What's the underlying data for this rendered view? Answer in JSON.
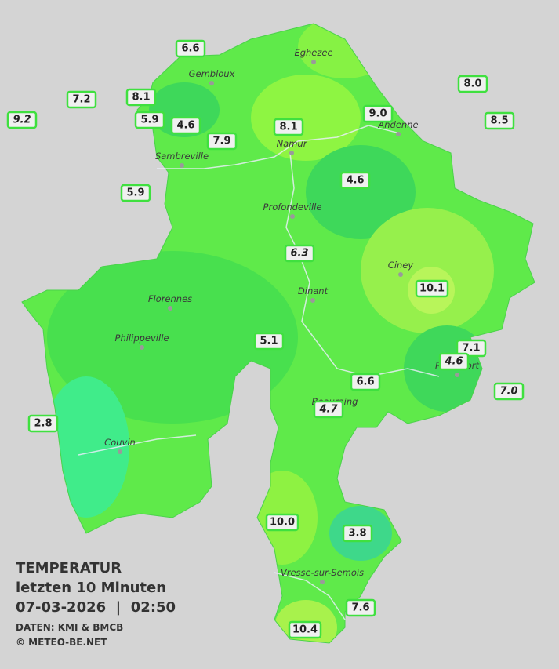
{
  "legend": {
    "title": "TEMPERATUR",
    "subtitle": "letzten 10 Minuten",
    "datetime": "07-03-2026  |  02:50",
    "source": "DATEN: KMI & BMCB",
    "copyright": "© METEO-BE.NET"
  },
  "cities": [
    "Eghezee",
    "Gembloux",
    "Andenne",
    "Namur",
    "Sambreville",
    "Profondeville",
    "Ciney",
    "Dinant",
    "Florennes",
    "Philippeville",
    "Rochefort",
    "Beauraing",
    "Couvin",
    "Vresse-sur-Semois"
  ],
  "stations": [
    {
      "label": "6.6"
    },
    {
      "label": "7.2"
    },
    {
      "label": "8.1"
    },
    {
      "label": "9.2",
      "italic": true
    },
    {
      "label": "5.9"
    },
    {
      "label": "4.6"
    },
    {
      "label": "7.9"
    },
    {
      "label": "8.1"
    },
    {
      "label": "9.0"
    },
    {
      "label": "8.0"
    },
    {
      "label": "8.5"
    },
    {
      "label": "5.9"
    },
    {
      "label": "4.6"
    },
    {
      "label": "6.3",
      "italic": true
    },
    {
      "label": "10.1"
    },
    {
      "label": "5.1"
    },
    {
      "label": "7.1"
    },
    {
      "label": "4.6",
      "italic": true
    },
    {
      "label": "6.6"
    },
    {
      "label": "7.0",
      "italic": true
    },
    {
      "label": "4.7",
      "italic": true
    },
    {
      "label": "2.8"
    },
    {
      "label": "10.0"
    },
    {
      "label": "3.8"
    },
    {
      "label": "7.6"
    },
    {
      "label": "10.4"
    }
  ]
}
